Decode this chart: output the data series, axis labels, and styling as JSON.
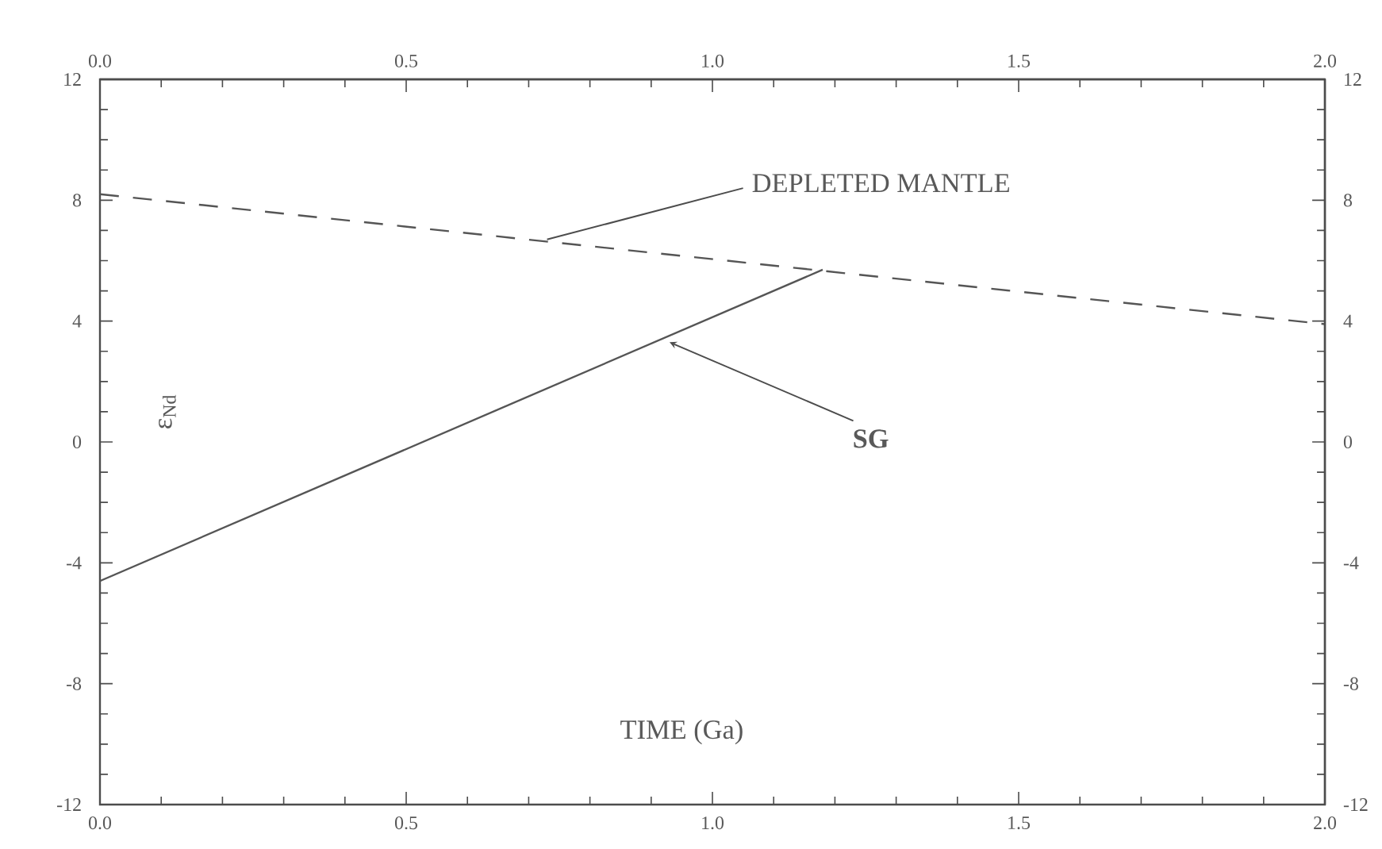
{
  "chart_data": {
    "type": "line",
    "xlabel": "TIME (Ga)",
    "ylabel": "ε$_{Nd}$",
    "series": [
      {
        "x": [
          0,
          2.0
        ],
        "values": [
          8.2,
          3.9
        ],
        "color": "#555555",
        "line_style": "dashed"
      },
      {
        "x": [
          0,
          1.18
        ],
        "values": [
          -4.6,
          5.7
        ],
        "color": "#555555",
        "line_style": "solid"
      }
    ],
    "annotations": [
      {
        "text": "DEPLETED MANTLE",
        "x": 0.73,
        "y": 6.7
      },
      {
        "text": "**SG**",
        "x": 0.93,
        "y": 3.3
      }
    ],
    "xlim": [
      0,
      2.0
    ],
    "ylim": [
      -12,
      12
    ],
    "xticks": [
      {
        "value": 0,
        "label": "0.0"
      },
      {
        "value": 0.5,
        "label": "0.5"
      },
      {
        "value": 1.0,
        "label": "1.0"
      },
      {
        "value": 1.5,
        "label": "1.5"
      },
      {
        "value": 2.0,
        "label": "2.0"
      }
    ],
    "yticks": [
      -12,
      -8,
      -4,
      0,
      4,
      8,
      12
    ],
    "x2lim": [
      0,
      2.0
    ],
    "x2ticks": [
      {
        "value": 0,
        "label": "0.0"
      },
      {
        "value": 0.5,
        "label": "0.5"
      },
      {
        "value": 1.0,
        "label": "1.0"
      },
      {
        "value": 1.5,
        "label": "1.5"
      },
      {
        "value": 2.0,
        "label": "2.0"
      }
    ],
    "y2lim": [
      -12,
      12
    ],
    "y2ticks": [
      -12,
      -8,
      -4,
      0,
      4,
      8,
      12
    ],
    "grid": false,
    "marker": "none"
  }
}
